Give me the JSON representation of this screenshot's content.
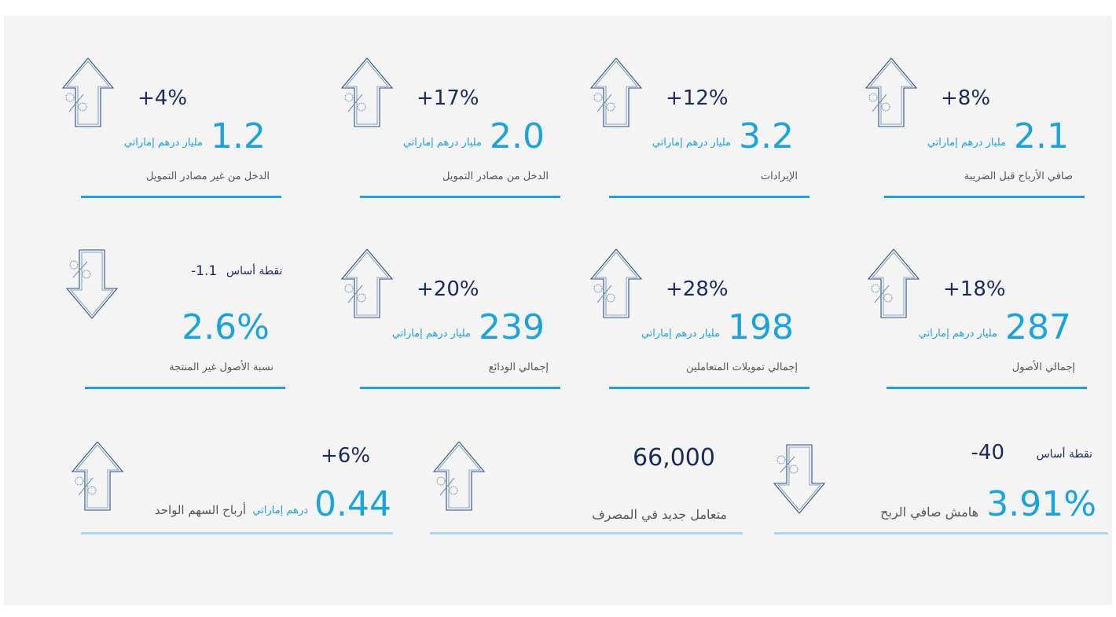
{
  "tiles": [
    {
      "change": "+8%",
      "value": "2.1",
      "unit": "مليار درهم إماراتي",
      "label": "صافي الأرباح قبل الضريبة",
      "direction": "up"
    },
    {
      "change": "+12%",
      "value": "3.2",
      "unit": "مليار درهم إماراتي",
      "label": "الإيرادات",
      "direction": "up"
    },
    {
      "change": "+17%",
      "value": "2.0",
      "unit": "مليار درهم إماراتي",
      "label": "الدخل من مصادر التمويل",
      "direction": "up"
    },
    {
      "change": "+4%",
      "value": "1.2",
      "unit": "مليار درهم إماراتي",
      "label": "الدخل من غير مصادر التمويل",
      "direction": "up"
    },
    {
      "change": "+18%",
      "value": "287",
      "unit": "مليار درهم إماراتي",
      "label": "إجمالي الأصول",
      "direction": "up"
    },
    {
      "change": "+28%",
      "value": "198",
      "unit": "مليار درهم إماراتي",
      "label": "إجمالي تمويلات المتعاملين",
      "direction": "up"
    },
    {
      "change": "+20%",
      "value": "239",
      "unit": "مليار درهم إماراتي",
      "label": "إجمالي الودائع",
      "direction": "up"
    },
    {
      "change": "-1.1",
      "change_unit": "نقطة أساس",
      "value": "2.6%",
      "label": "نسبة الأصول غير المنتجة",
      "direction": "down"
    },
    {
      "change": "-40",
      "change_unit": "نقطة أساس",
      "value": "3.91%",
      "label": "هامش صافي الربح",
      "direction": "down"
    },
    {
      "value": "66,000",
      "label": "متعامل جديد في المصرف",
      "direction": "up"
    },
    {
      "change": "+6%",
      "value": "0.44",
      "unit": "درهم إماراتي",
      "label": "أرباح السهم الواحد",
      "direction": "up"
    }
  ]
}
